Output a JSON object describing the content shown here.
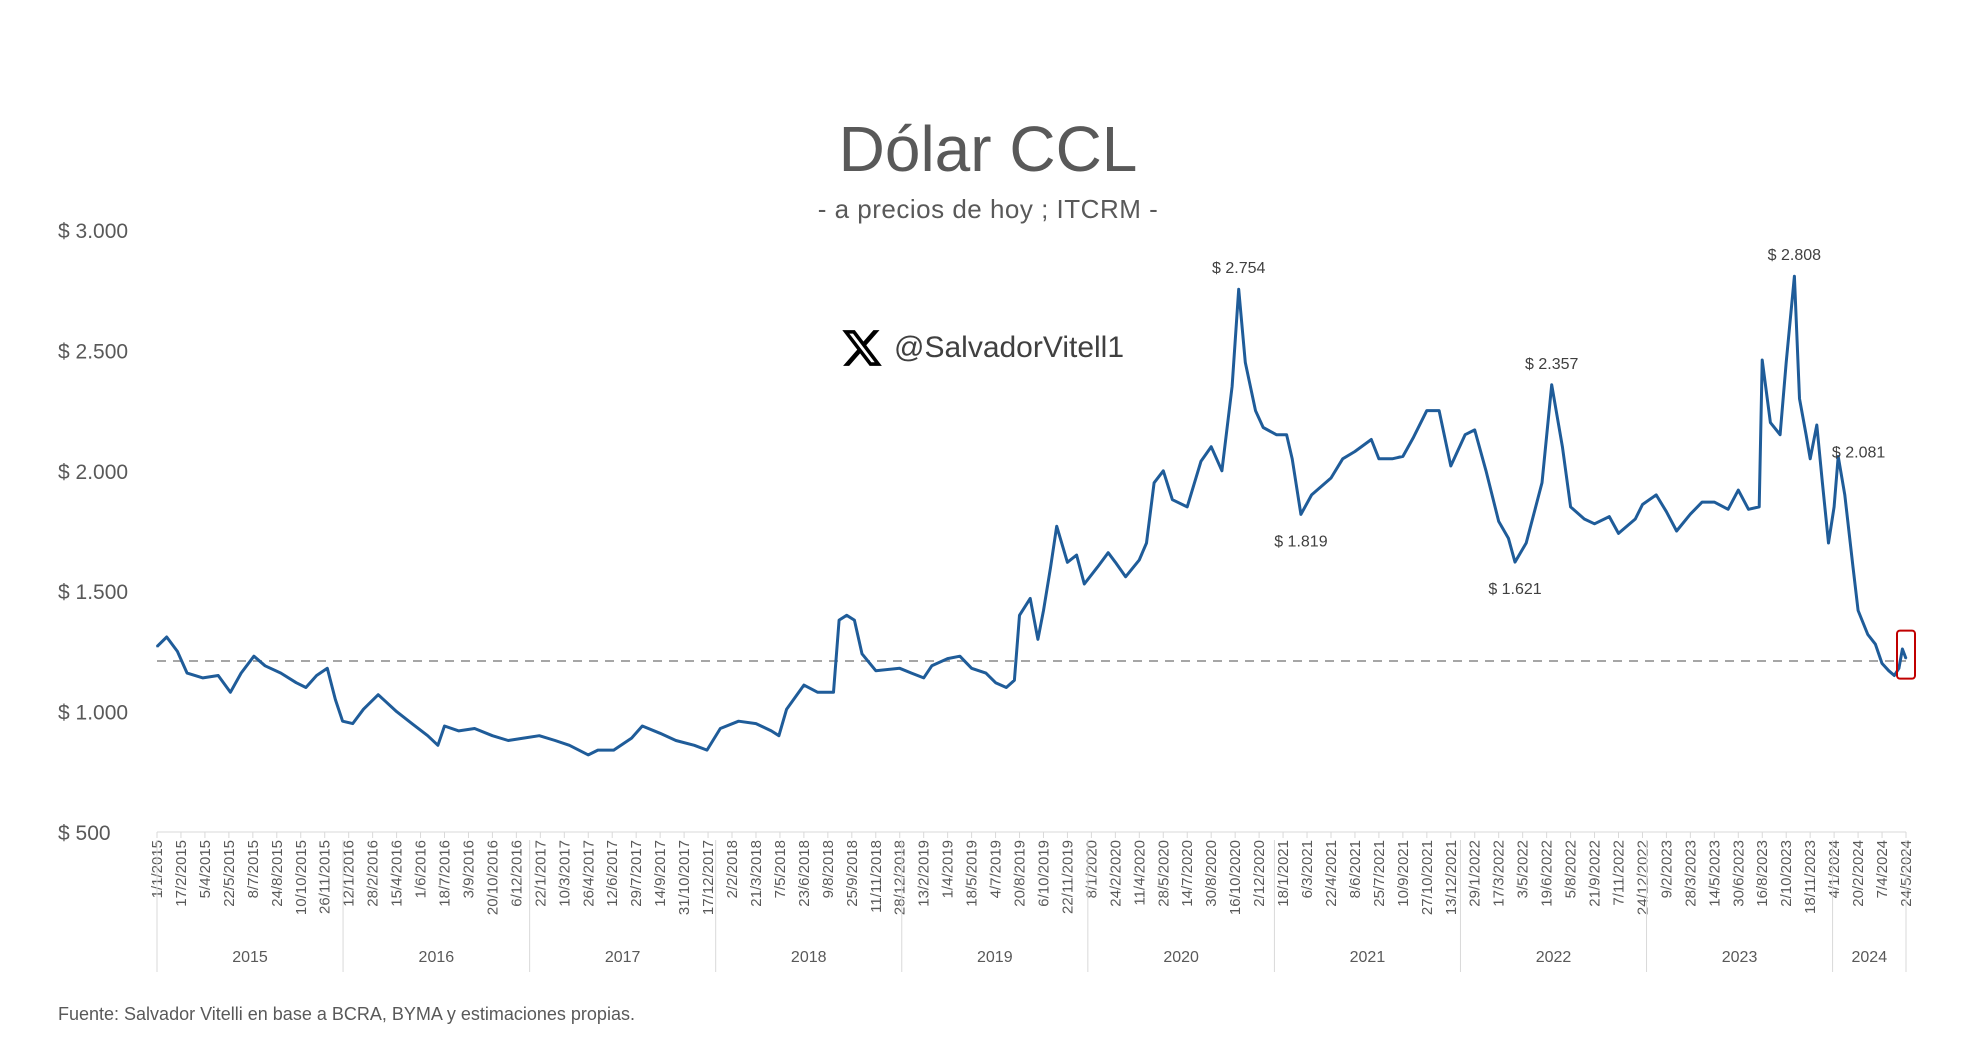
{
  "chart_data": {
    "type": "line",
    "title": "Dólar CCL",
    "subtitle": "- a precios de hoy ; ITCRM -",
    "watermark": "@SalvadorVitell1",
    "source": "Fuente: Salvador Vitelli en base a BCRA, BYMA y estimaciones propias.",
    "ylim": [
      500,
      3000
    ],
    "yticks": [
      {
        "value": 500,
        "label": "$ 500"
      },
      {
        "value": 1000,
        "label": "$ 1.000"
      },
      {
        "value": 1500,
        "label": "$ 1.500"
      },
      {
        "value": 2000,
        "label": "$ 2.000"
      },
      {
        "value": 2500,
        "label": "$ 2.500"
      },
      {
        "value": 3000,
        "label": "$ 3.000"
      }
    ],
    "reference_line": 1210,
    "line_color": "#1f5c99",
    "reference_color": "#a6a6a6",
    "highlight_color": "#c00000",
    "xlim": [
      "2015-01-01",
      "2024-05-24"
    ],
    "xticks": [
      "1/1/2015",
      "17/2/2015",
      "5/4/2015",
      "22/5/2015",
      "8/7/2015",
      "24/8/2015",
      "10/10/2015",
      "26/11/2015",
      "12/1/2016",
      "28/2/2016",
      "15/4/2016",
      "1/6/2016",
      "18/7/2016",
      "3/9/2016",
      "20/10/2016",
      "6/12/2016",
      "22/1/2017",
      "10/3/2017",
      "26/4/2017",
      "12/6/2017",
      "29/7/2017",
      "14/9/2017",
      "31/10/2017",
      "17/12/2017",
      "2/2/2018",
      "21/3/2018",
      "7/5/2018",
      "23/6/2018",
      "9/8/2018",
      "25/9/2018",
      "11/11/2018",
      "28/12/2018",
      "13/2/2019",
      "1/4/2019",
      "18/5/2019",
      "4/7/2019",
      "20/8/2019",
      "6/10/2019",
      "22/11/2019",
      "8/1/2020",
      "24/2/2020",
      "11/4/2020",
      "28/5/2020",
      "14/7/2020",
      "30/8/2020",
      "16/10/2020",
      "2/12/2020",
      "18/1/2021",
      "6/3/2021",
      "22/4/2021",
      "8/6/2021",
      "25/7/2021",
      "10/9/2021",
      "27/10/2021",
      "13/12/2021",
      "29/1/2022",
      "17/3/2022",
      "3/5/2022",
      "19/6/2022",
      "5/8/2022",
      "21/9/2022",
      "7/11/2022",
      "24/12/2022",
      "9/2/2023",
      "28/3/2023",
      "14/5/2023",
      "30/6/2023",
      "16/8/2023",
      "2/10/2023",
      "18/11/2023",
      "4/1/2024",
      "20/2/2024",
      "7/4/2024",
      "24/5/2024"
    ],
    "years": [
      "2015",
      "2016",
      "2017",
      "2018",
      "2019",
      "2020",
      "2021",
      "2022",
      "2023",
      "2024"
    ],
    "annotations": [
      {
        "date": "2020-10-23",
        "value": 2754,
        "label": "$ 2.754",
        "pos": "above"
      },
      {
        "date": "2021-02-22",
        "value": 1819,
        "label": "$ 1.819",
        "pos": "below"
      },
      {
        "date": "2022-04-18",
        "value": 1621,
        "label": "$ 1.621",
        "pos": "below"
      },
      {
        "date": "2022-06-29",
        "value": 2357,
        "label": "$ 2.357",
        "pos": "above"
      },
      {
        "date": "2023-10-18",
        "value": 2808,
        "label": "$ 2.808",
        "pos": "above"
      },
      {
        "date": "2023-12-15",
        "value": 2081,
        "label": "$ 2.081",
        "pos": "right"
      }
    ],
    "series": [
      {
        "points": [
          [
            "2015-01-01",
            1270
          ],
          [
            "2015-01-20",
            1310
          ],
          [
            "2015-02-10",
            1250
          ],
          [
            "2015-03-01",
            1160
          ],
          [
            "2015-04-01",
            1140
          ],
          [
            "2015-05-01",
            1150
          ],
          [
            "2015-05-25",
            1080
          ],
          [
            "2015-06-15",
            1160
          ],
          [
            "2015-07-10",
            1230
          ],
          [
            "2015-08-01",
            1190
          ],
          [
            "2015-09-01",
            1160
          ],
          [
            "2015-10-01",
            1120
          ],
          [
            "2015-10-20",
            1100
          ],
          [
            "2015-11-10",
            1150
          ],
          [
            "2015-12-01",
            1180
          ],
          [
            "2015-12-17",
            1050
          ],
          [
            "2015-12-31",
            960
          ],
          [
            "2016-01-20",
            950
          ],
          [
            "2016-02-10",
            1010
          ],
          [
            "2016-03-10",
            1070
          ],
          [
            "2016-04-15",
            1000
          ],
          [
            "2016-05-15",
            950
          ],
          [
            "2016-06-15",
            900
          ],
          [
            "2016-07-05",
            860
          ],
          [
            "2016-07-18",
            940
          ],
          [
            "2016-08-15",
            920
          ],
          [
            "2016-09-15",
            930
          ],
          [
            "2016-10-20",
            900
          ],
          [
            "2016-11-20",
            880
          ],
          [
            "2016-12-20",
            890
          ],
          [
            "2017-01-20",
            900
          ],
          [
            "2017-02-20",
            880
          ],
          [
            "2017-03-20",
            860
          ],
          [
            "2017-04-26",
            820
          ],
          [
            "2017-05-15",
            840
          ],
          [
            "2017-06-15",
            840
          ],
          [
            "2017-07-20",
            890
          ],
          [
            "2017-08-10",
            940
          ],
          [
            "2017-09-14",
            910
          ],
          [
            "2017-10-15",
            880
          ],
          [
            "2017-11-20",
            860
          ],
          [
            "2017-12-15",
            840
          ],
          [
            "2018-01-10",
            930
          ],
          [
            "2018-02-15",
            960
          ],
          [
            "2018-03-21",
            950
          ],
          [
            "2018-04-20",
            920
          ],
          [
            "2018-05-05",
            900
          ],
          [
            "2018-05-20",
            1010
          ],
          [
            "2018-06-23",
            1110
          ],
          [
            "2018-07-20",
            1080
          ],
          [
            "2018-08-20",
            1080
          ],
          [
            "2018-08-31",
            1380
          ],
          [
            "2018-09-15",
            1400
          ],
          [
            "2018-09-30",
            1380
          ],
          [
            "2018-10-15",
            1240
          ],
          [
            "2018-11-11",
            1170
          ],
          [
            "2018-12-28",
            1180
          ],
          [
            "2019-01-20",
            1160
          ],
          [
            "2019-02-13",
            1140
          ],
          [
            "2019-03-01",
            1190
          ],
          [
            "2019-04-01",
            1220
          ],
          [
            "2019-04-25",
            1230
          ],
          [
            "2019-05-18",
            1180
          ],
          [
            "2019-06-15",
            1160
          ],
          [
            "2019-07-04",
            1120
          ],
          [
            "2019-07-25",
            1100
          ],
          [
            "2019-08-10",
            1130
          ],
          [
            "2019-08-20",
            1400
          ],
          [
            "2019-09-10",
            1470
          ],
          [
            "2019-09-25",
            1300
          ],
          [
            "2019-10-06",
            1420
          ],
          [
            "2019-10-20",
            1600
          ],
          [
            "2019-11-01",
            1770
          ],
          [
            "2019-11-22",
            1620
          ],
          [
            "2019-12-10",
            1650
          ],
          [
            "2019-12-25",
            1530
          ],
          [
            "2020-01-20",
            1600
          ],
          [
            "2020-02-10",
            1660
          ],
          [
            "2020-02-24",
            1620
          ],
          [
            "2020-03-15",
            1560
          ],
          [
            "2020-04-11",
            1630
          ],
          [
            "2020-04-25",
            1700
          ],
          [
            "2020-05-10",
            1950
          ],
          [
            "2020-05-28",
            2000
          ],
          [
            "2020-06-15",
            1880
          ],
          [
            "2020-07-14",
            1850
          ],
          [
            "2020-08-10",
            2040
          ],
          [
            "2020-08-30",
            2100
          ],
          [
            "2020-09-20",
            2000
          ],
          [
            "2020-10-10",
            2350
          ],
          [
            "2020-10-23",
            2754
          ],
          [
            "2020-11-05",
            2450
          ],
          [
            "2020-11-25",
            2250
          ],
          [
            "2020-12-10",
            2180
          ],
          [
            "2021-01-05",
            2150
          ],
          [
            "2021-01-25",
            2150
          ],
          [
            "2021-02-05",
            2050
          ],
          [
            "2021-02-22",
            1819
          ],
          [
            "2021-03-15",
            1900
          ],
          [
            "2021-04-22",
            1970
          ],
          [
            "2021-05-15",
            2050
          ],
          [
            "2021-06-08",
            2080
          ],
          [
            "2021-07-10",
            2130
          ],
          [
            "2021-07-25",
            2050
          ],
          [
            "2021-08-20",
            2050
          ],
          [
            "2021-09-10",
            2060
          ],
          [
            "2021-10-01",
            2140
          ],
          [
            "2021-10-27",
            2250
          ],
          [
            "2021-11-20",
            2250
          ],
          [
            "2021-12-13",
            2020
          ],
          [
            "2022-01-10",
            2150
          ],
          [
            "2022-01-29",
            2170
          ],
          [
            "2022-02-20",
            2000
          ],
          [
            "2022-03-17",
            1790
          ],
          [
            "2022-04-05",
            1720
          ],
          [
            "2022-04-18",
            1621
          ],
          [
            "2022-05-10",
            1700
          ],
          [
            "2022-06-10",
            1950
          ],
          [
            "2022-06-29",
            2357
          ],
          [
            "2022-07-20",
            2100
          ],
          [
            "2022-08-05",
            1850
          ],
          [
            "2022-09-01",
            1800
          ],
          [
            "2022-09-21",
            1780
          ],
          [
            "2022-10-20",
            1810
          ],
          [
            "2022-11-07",
            1740
          ],
          [
            "2022-12-10",
            1800
          ],
          [
            "2022-12-24",
            1860
          ],
          [
            "2023-01-20",
            1900
          ],
          [
            "2023-02-09",
            1830
          ],
          [
            "2023-03-01",
            1750
          ],
          [
            "2023-03-28",
            1820
          ],
          [
            "2023-04-20",
            1870
          ],
          [
            "2023-05-14",
            1870
          ],
          [
            "2023-06-10",
            1840
          ],
          [
            "2023-06-30",
            1920
          ],
          [
            "2023-07-20",
            1840
          ],
          [
            "2023-08-10",
            1850
          ],
          [
            "2023-08-16",
            2460
          ],
          [
            "2023-09-01",
            2200
          ],
          [
            "2023-09-20",
            2150
          ],
          [
            "2023-10-02",
            2450
          ],
          [
            "2023-10-18",
            2808
          ],
          [
            "2023-10-28",
            2300
          ],
          [
            "2023-11-10",
            2150
          ],
          [
            "2023-11-18",
            2050
          ],
          [
            "2023-12-01",
            2190
          ],
          [
            "2023-12-12",
            1950
          ],
          [
            "2023-12-24",
            1700
          ],
          [
            "2024-01-04",
            1850
          ],
          [
            "2024-01-12",
            2060
          ],
          [
            "2024-01-25",
            1900
          ],
          [
            "2024-02-10",
            1600
          ],
          [
            "2024-02-20",
            1420
          ],
          [
            "2024-03-10",
            1320
          ],
          [
            "2024-03-25",
            1280
          ],
          [
            "2024-04-07",
            1200
          ],
          [
            "2024-04-20",
            1170
          ],
          [
            "2024-05-01",
            1150
          ],
          [
            "2024-05-10",
            1180
          ],
          [
            "2024-05-17",
            1260
          ],
          [
            "2024-05-24",
            1220
          ]
        ]
      }
    ]
  }
}
